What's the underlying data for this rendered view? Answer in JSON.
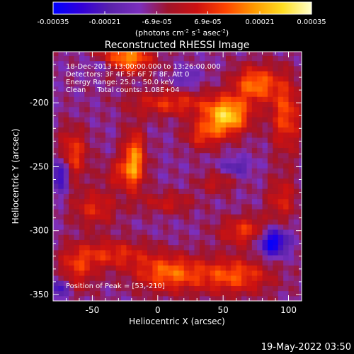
{
  "colorbar": {
    "ticks": [
      "-0.00035",
      "-0.00021",
      "-6.9e-05",
      "6.9e-05",
      "0.00021",
      "0.00035"
    ],
    "tick_values": [
      -0.00035,
      -0.00021,
      -6.9e-05,
      6.9e-05,
      0.00021,
      0.00035
    ],
    "range": [
      -0.00035,
      0.00035
    ],
    "unit_prefix": "(photons cm",
    "unit_exp1": "-2",
    "unit_mid": " s",
    "unit_exp2": "-1",
    "unit_tail": " asec",
    "unit_exp3": "-2",
    "unit_close": ")"
  },
  "annotation": {
    "time": "18-Dec-2013 13:00:00.000 to 13:26:00.000",
    "detectors": "Detectors: 3F 4F 5F 6F 7F 8F, Att 0",
    "energy": "Energy Range: 25.0 - 50.0 keV",
    "clean": "Clean     Total counts: 1.08E+04",
    "peak": "Position of Peak = [53,-210]"
  },
  "footer_timestamp": "19-May-2022 03:50",
  "palette": {
    "stops": [
      "#0000ff",
      "#3200d8",
      "#5a22aa",
      "#7b2fbe",
      "#a0142a",
      "#cc1111",
      "#ff4400",
      "#ff9900",
      "#ffdd22",
      "#ffffcc"
    ]
  },
  "chart_data": {
    "type": "heatmap",
    "title": "Reconstructed RHESSI Image",
    "xlabel": "Heliocentric X (arcsec)",
    "ylabel": "Heliocentric Y (arcsec)",
    "xlim": [
      -80,
      110
    ],
    "ylim": [
      -355,
      -160
    ],
    "x_ticks": [
      -50,
      0,
      50,
      100
    ],
    "y_ticks": [
      -200,
      -250,
      -300,
      -350
    ],
    "x_tick_labels": [
      "-50",
      "0",
      "50",
      "100"
    ],
    "y_tick_labels": [
      "-200",
      "-250",
      "-300",
      "-350"
    ],
    "peak": [
      53,
      -210
    ],
    "blobs": [
      {
        "x": -25,
        "y": -165,
        "amp": 0.0003,
        "sx": 14,
        "sy": 8
      },
      {
        "x": 53,
        "y": -210,
        "amp": 0.00035,
        "sx": 12,
        "sy": 10
      },
      {
        "x": 75,
        "y": -185,
        "amp": 0.00025,
        "sx": 12,
        "sy": 10
      },
      {
        "x": 98,
        "y": -210,
        "amp": 0.0002,
        "sx": 8,
        "sy": 20
      },
      {
        "x": 10,
        "y": -200,
        "amp": 0.00017,
        "sx": 22,
        "sy": 7
      },
      {
        "x": 35,
        "y": -225,
        "amp": 0.00016,
        "sx": 10,
        "sy": 8
      },
      {
        "x": -18,
        "y": -245,
        "amp": 0.00028,
        "sx": 6,
        "sy": 16
      },
      {
        "x": -65,
        "y": -240,
        "amp": 0.00019,
        "sx": 8,
        "sy": 14
      },
      {
        "x": -48,
        "y": -282,
        "amp": 0.00015,
        "sx": 12,
        "sy": 10
      },
      {
        "x": 8,
        "y": -278,
        "amp": 0.00012,
        "sx": 14,
        "sy": 6
      },
      {
        "x": 68,
        "y": -300,
        "amp": 0.00018,
        "sx": 15,
        "sy": 8
      },
      {
        "x": -35,
        "y": -318,
        "amp": 0.00016,
        "sx": 20,
        "sy": 8
      },
      {
        "x": 8,
        "y": -333,
        "amp": 0.00023,
        "sx": 18,
        "sy": 10
      },
      {
        "x": 58,
        "y": -335,
        "amp": 0.00021,
        "sx": 20,
        "sy": 10
      },
      {
        "x": -62,
        "y": -330,
        "amp": 0.00015,
        "sx": 10,
        "sy": 12
      },
      {
        "x": 95,
        "y": -275,
        "amp": 0.00014,
        "sx": 8,
        "sy": 12
      },
      {
        "x": 45,
        "y": -262,
        "amp": 0.00011,
        "sx": 10,
        "sy": 6
      },
      {
        "x": -30,
        "y": -255,
        "amp": 0.00012,
        "sx": 8,
        "sy": 8
      },
      {
        "x": 88,
        "y": -308,
        "amp": -0.0003,
        "sx": 8,
        "sy": 8
      },
      {
        "x": -75,
        "y": -255,
        "amp": -0.00022,
        "sx": 5,
        "sy": 10
      },
      {
        "x": -75,
        "y": -345,
        "amp": -0.00018,
        "sx": 5,
        "sy": 6
      },
      {
        "x": 60,
        "y": -250,
        "amp": -0.00012,
        "sx": 8,
        "sy": 5
      },
      {
        "x": 22,
        "y": -180,
        "amp": -0.0001,
        "sx": 6,
        "sy": 6
      },
      {
        "x": -40,
        "y": -170,
        "amp": -0.00012,
        "sx": 10,
        "sy": 5
      }
    ],
    "background": -9e-05
  }
}
